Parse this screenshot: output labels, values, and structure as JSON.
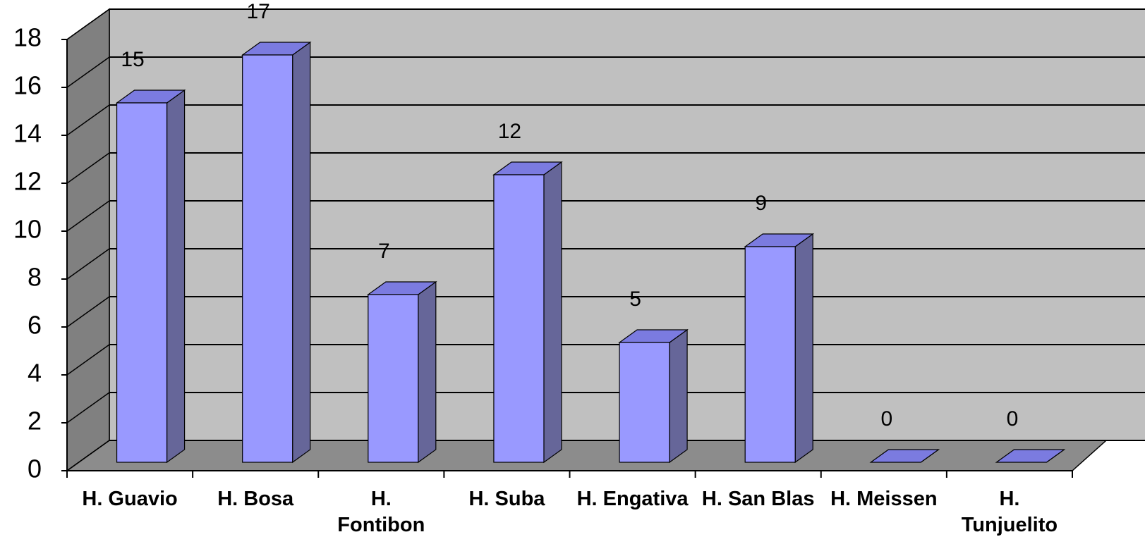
{
  "chart_data": {
    "type": "bar3d",
    "categories": [
      "H. Guavio",
      "H. Bosa",
      "H. Fontibon",
      "H. Suba",
      "H. Engativa",
      "H. San Blas",
      "H. Meissen",
      "H. Tunjuelito"
    ],
    "values": [
      15,
      17,
      7,
      12,
      5,
      9,
      0,
      0
    ],
    "color": "#9999ff",
    "ylim": [
      0,
      18
    ],
    "yticks": [
      0,
      2,
      4,
      6,
      8,
      10,
      12,
      14,
      16,
      18
    ],
    "grid": true
  }
}
